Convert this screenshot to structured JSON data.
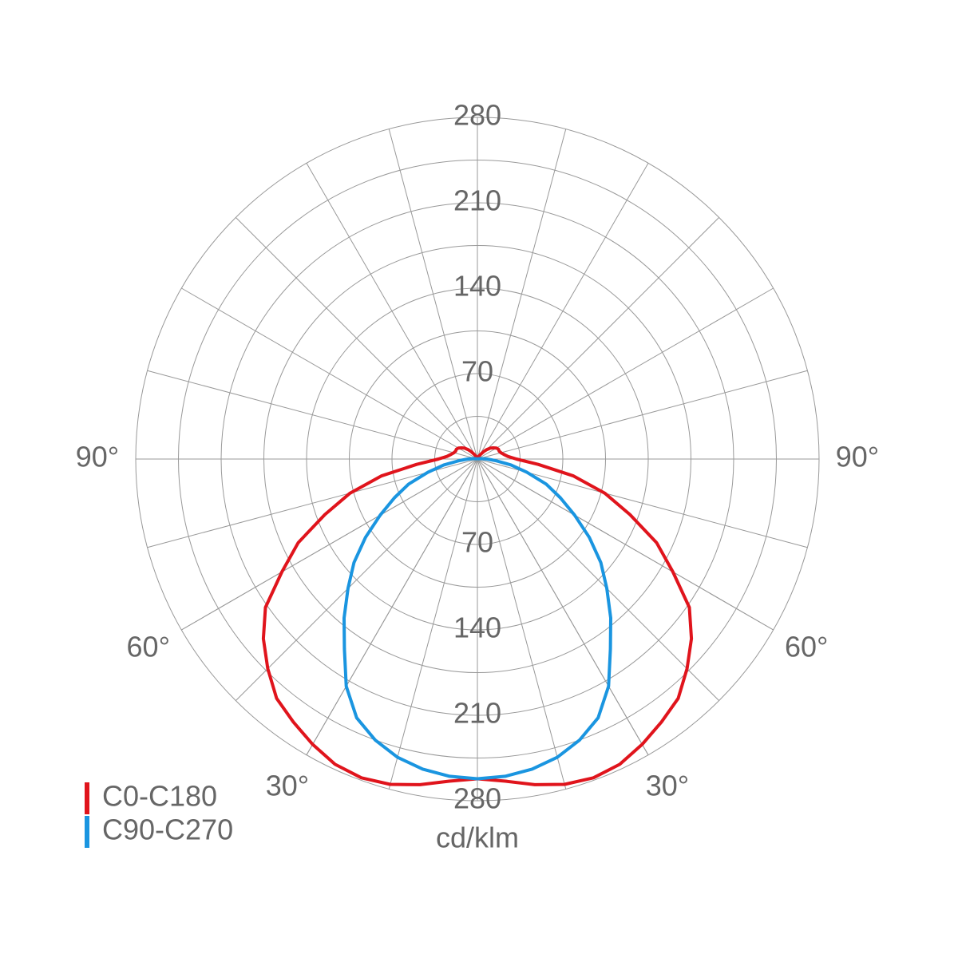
{
  "chart_data": {
    "type": "polar",
    "unit_label": "cd/klm",
    "x": [
      0,
      5,
      10,
      15,
      20,
      25,
      30,
      35,
      40,
      45,
      50,
      55,
      60,
      65,
      70,
      75,
      80,
      85,
      90,
      95,
      100,
      105,
      110,
      115,
      120,
      125,
      130,
      135,
      140,
      145,
      150,
      155,
      160,
      165,
      170,
      175,
      180
    ],
    "series": [
      {
        "name": "C0-C180",
        "color": "#e0141c",
        "values": [
          262,
          265,
          271,
          276,
          278,
          276,
          270,
          263,
          256,
          243,
          229,
          212,
          185,
          162,
          133,
          108,
          80,
          50,
          32,
          25,
          22,
          20,
          19,
          19,
          18,
          16,
          14,
          11,
          8,
          5,
          3,
          2,
          1,
          0,
          0,
          0,
          0
        ]
      },
      {
        "name": "C90-C270",
        "color": "#1a95e0",
        "values": [
          262,
          261,
          258,
          253,
          245,
          234,
          215,
          190,
          170,
          150,
          132,
          112,
          92,
          75,
          60,
          42,
          28,
          15,
          8,
          4,
          2,
          1,
          0,
          0,
          0,
          0,
          0,
          0,
          0,
          0,
          0,
          0,
          0,
          0,
          0,
          0,
          0
        ]
      }
    ],
    "rlim": [
      0,
      280
    ],
    "rticks": [
      70,
      140,
      210,
      280
    ],
    "angle_ticks": [
      {
        "value": 30,
        "label": "30°"
      },
      {
        "value": 60,
        "label": "60°"
      },
      {
        "value": 90,
        "label": "90°"
      }
    ],
    "grid": true,
    "legend": "lower left"
  }
}
